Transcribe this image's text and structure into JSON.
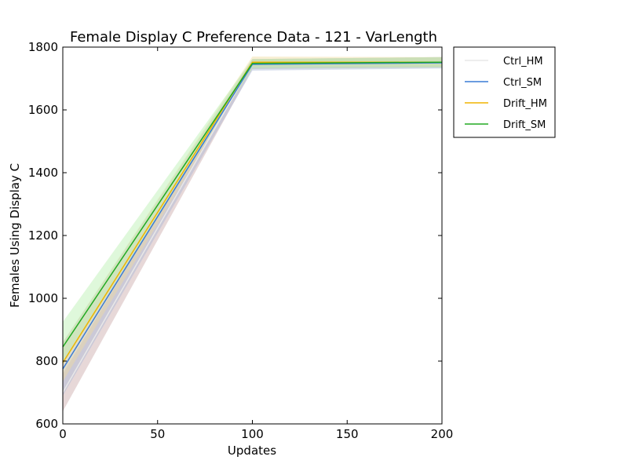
{
  "chart_data": {
    "type": "line",
    "title": "Female Display C Preference Data - 121 - VarLength",
    "xlabel": "Updates",
    "ylabel": "Females Using Display C",
    "xlim": [
      0,
      200
    ],
    "ylim": [
      600,
      1800
    ],
    "xticks": [
      "0",
      "50",
      "100",
      "150",
      "200"
    ],
    "yticks": [
      "600",
      "800",
      "1000",
      "1200",
      "1400",
      "1600",
      "1800"
    ],
    "legend_position": "outside-right-top",
    "grid": false,
    "x": [
      0,
      100,
      200
    ],
    "series": [
      {
        "name": "Ctrl_HM",
        "color": "#e8e8e8",
        "band_color": "#c9a8a8",
        "values": [
          700,
          1748,
          1752
        ],
        "lower": [
          640,
          1730,
          1735
        ],
        "upper": [
          760,
          1762,
          1768
        ]
      },
      {
        "name": "Ctrl_SM",
        "color": "#3a7bd5",
        "band_color": "#a8b8d8",
        "values": [
          775,
          1745,
          1750
        ],
        "lower": [
          690,
          1725,
          1732
        ],
        "upper": [
          860,
          1762,
          1768
        ]
      },
      {
        "name": "Drift_HM",
        "color": "#f0b400",
        "band_color": "#f0dca0",
        "values": [
          795,
          1752,
          1752
        ],
        "lower": [
          735,
          1738,
          1738
        ],
        "upper": [
          860,
          1770,
          1768
        ]
      },
      {
        "name": "Drift_SM",
        "color": "#22aa22",
        "band_color": "#b8f0b0",
        "values": [
          845,
          1748,
          1752
        ],
        "lower": [
          790,
          1732,
          1735
        ],
        "upper": [
          925,
          1762,
          1768
        ]
      }
    ]
  }
}
